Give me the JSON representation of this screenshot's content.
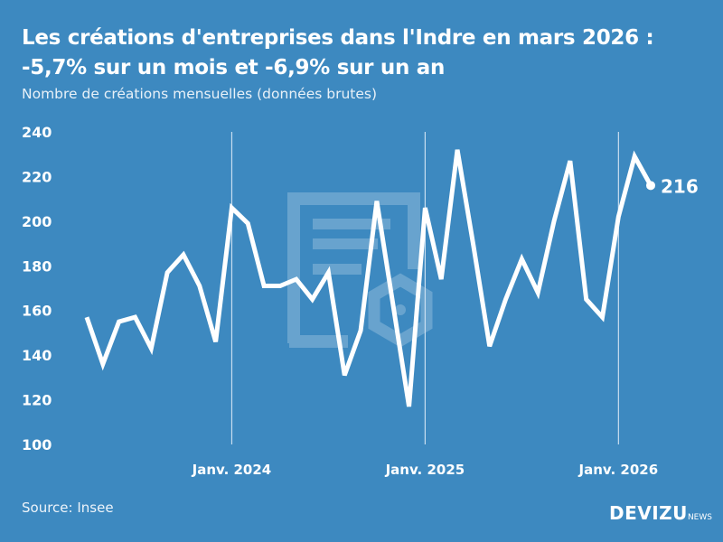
{
  "title": "Les créations d'entreprises dans l'Indre en mars 2026 : -5,7% sur un mois et -6,9% sur un an",
  "subtitle": "Nombre de créations mensuelles (données brutes)",
  "source": "Source: Insee",
  "logo": {
    "main": "DEVIZU",
    "suffix": "NEWS"
  },
  "colors": {
    "background": "#3d89c0",
    "line": "#ffffff"
  },
  "chart_data": {
    "type": "line",
    "x": [
      "2023-04",
      "2023-05",
      "2023-06",
      "2023-07",
      "2023-08",
      "2023-09",
      "2023-10",
      "2023-11",
      "2023-12",
      "2024-01",
      "2024-02",
      "2024-03",
      "2024-04",
      "2024-05",
      "2024-06",
      "2024-07",
      "2024-08",
      "2024-09",
      "2024-10",
      "2024-11",
      "2024-12",
      "2025-01",
      "2025-02",
      "2025-03",
      "2025-04",
      "2025-05",
      "2025-06",
      "2025-07",
      "2025-08",
      "2025-09",
      "2025-10",
      "2025-11",
      "2025-12",
      "2026-01",
      "2026-02",
      "2026-03"
    ],
    "values": [
      157,
      136,
      155,
      157,
      143,
      177,
      185,
      171,
      146,
      206,
      199,
      171,
      171,
      174,
      165,
      177,
      131,
      151,
      209,
      163,
      117,
      206,
      174,
      232,
      189,
      144,
      165,
      183,
      168,
      200,
      227,
      165,
      157,
      202,
      229,
      216
    ],
    "ylim": [
      100,
      240
    ],
    "yticks": [
      "100",
      "120",
      "140",
      "160",
      "180",
      "200",
      "220",
      "240"
    ],
    "xticks": [
      {
        "x": "2024-01",
        "label": "Janv. 2024"
      },
      {
        "x": "2025-01",
        "label": "Janv. 2025"
      },
      {
        "x": "2026-01",
        "label": "Janv. 2026"
      }
    ],
    "last_label": "216",
    "grid": "vertical lines at January"
  }
}
